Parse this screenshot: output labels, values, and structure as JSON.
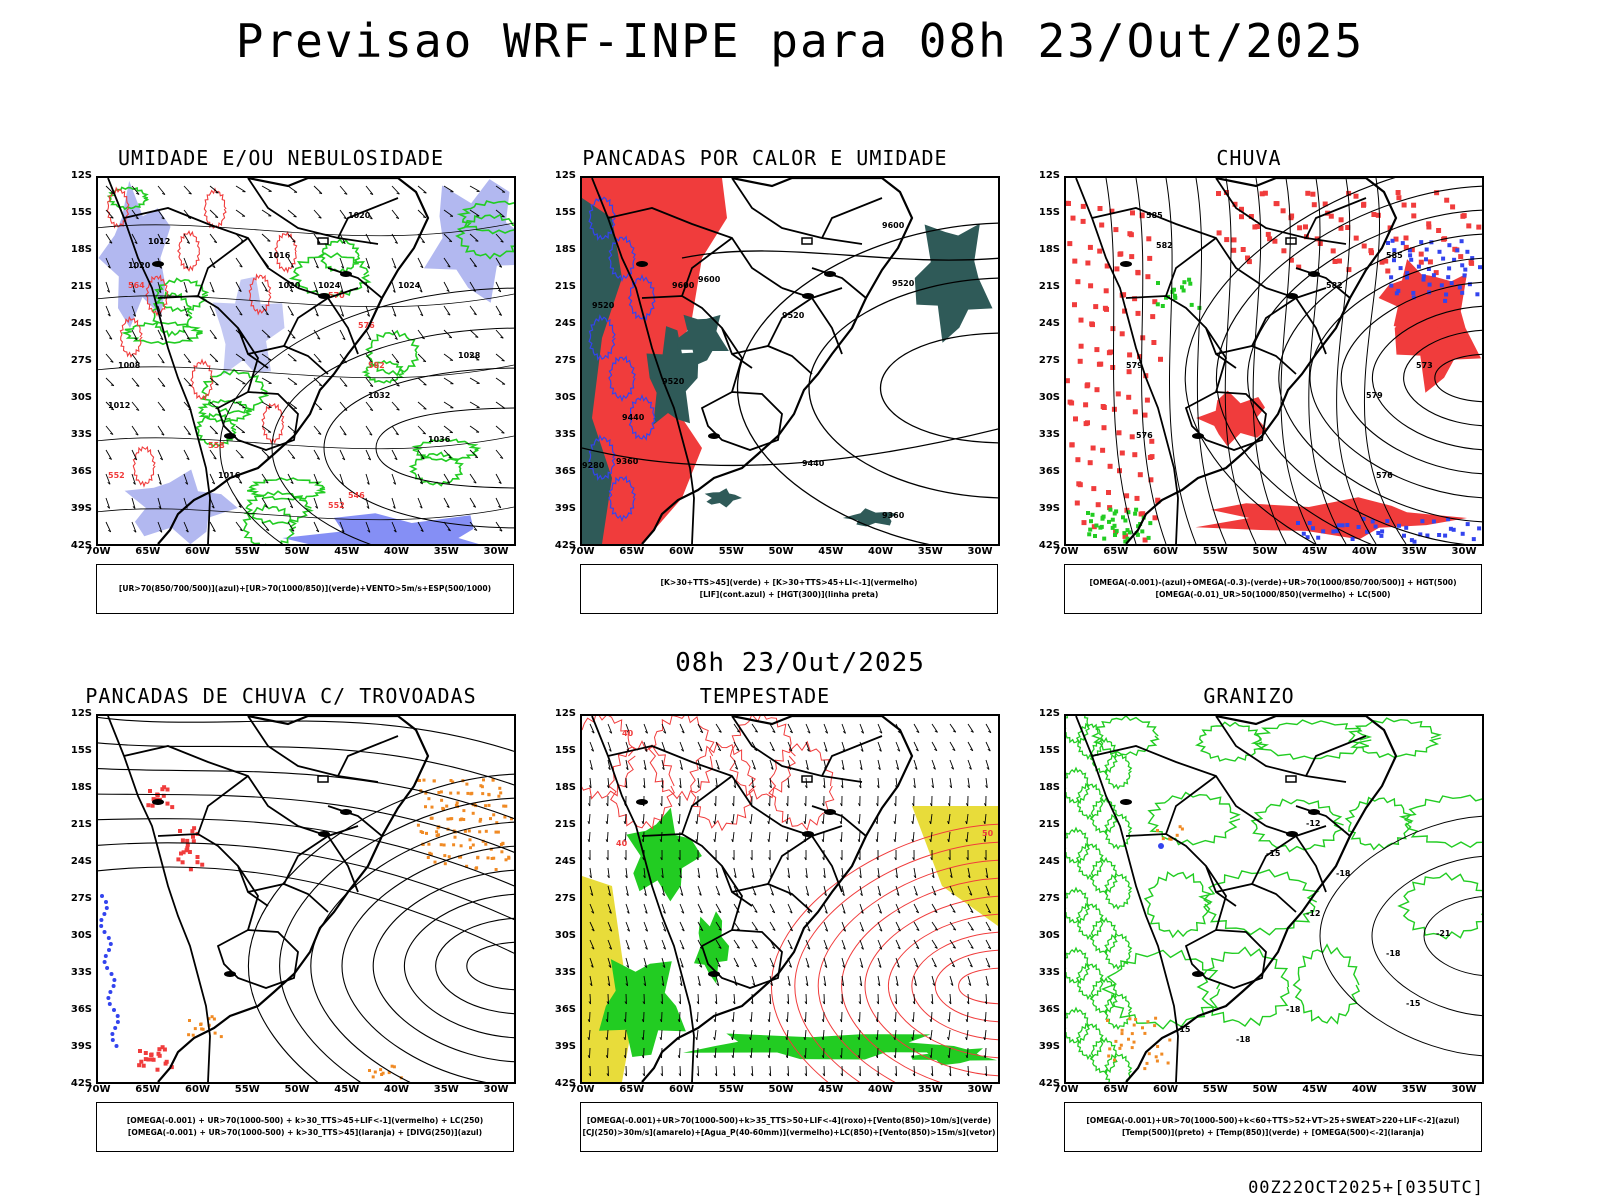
{
  "header": {
    "title": "Previsao WRF-INPE  para 08h 23/Out/2025"
  },
  "mid_title": "08h 23/Out/2025",
  "footer": "00Z22OCT2025+[035UTC]",
  "axes": {
    "lat_labels": [
      "12S",
      "15S",
      "18S",
      "21S",
      "24S",
      "27S",
      "30S",
      "33S",
      "36S",
      "39S",
      "42S"
    ],
    "lon_labels": [
      "70W",
      "65W",
      "60W",
      "55W",
      "50W",
      "45W",
      "40W",
      "35W",
      "30W"
    ]
  },
  "colors": {
    "red": "#f03c3c",
    "green": "#22cc22",
    "blue": "#3344ee",
    "lavender": "#aab0ee",
    "orange": "#f08a24",
    "yellow": "#e8dc3a",
    "darkteal": "#2f5a58",
    "black": "#000000"
  },
  "panels": [
    {
      "title": "UMIDADE E/OU NEBULOSIDADE",
      "legend": [
        "[UR>70(850/700/500)](azul)+[UR>70(1000/850)](verde)+VENTO>5m/s+ESP(500/1000)"
      ],
      "contour_labels": [
        "1012",
        "1020",
        "1016",
        "1024",
        "1028",
        "1032",
        "1036",
        "1020",
        "1016",
        "1012",
        "1008",
        "1024",
        "1020"
      ],
      "thickness_labels": [
        "564",
        "570",
        "576",
        "582",
        "558",
        "552",
        "546",
        "552"
      ]
    },
    {
      "title": "PANCADAS POR CALOR E UMIDADE",
      "legend": [
        "[K>30+TTS>45](verde) + [K>30+TTS>45+LI<-1](vermelho)",
        "[LIF](cont.azul) + [HGT(300)](linha preta)"
      ],
      "contour_labels": [
        "9600",
        "9600",
        "9520",
        "9520",
        "9520",
        "9440",
        "9440",
        "9360",
        "9280",
        "9360",
        "9520",
        "9600"
      ]
    },
    {
      "title": "CHUVA",
      "legend": [
        "[OMEGA(-0.001)-(azul)+OMEGA(-0.3)-(verde)+UR>70(1000/850/700/500)] + HGT(500)",
        "[OMEGA(-0.01)_UR>50(1000/850)(vermelho) + LC(500)"
      ],
      "contour_labels": [
        "585",
        "582",
        "579",
        "576",
        "573",
        "576",
        "579",
        "582",
        "585"
      ]
    },
    {
      "title": "PANCADAS DE CHUVA C/ TROVOADAS",
      "legend": [
        "[OMEGA(-0.001) + UR>70(1000-500) + k>30_TTS>45+LIF<-1](vermelho) + LC(250)",
        "[OMEGA(-0.001) + UR>70(1000-500) + k>30_TTS>45](laranja) + [DIVG(250)](azul)"
      ]
    },
    {
      "title": "TEMPESTADE",
      "legend": [
        "[OMEGA(-0.001)+UR>70(1000-500)+k>35_TTS>50+LIF<-4](roxo)+[Vento(850)>10m/s](verde)",
        "[CJ(250)>30m/s](amarelo)+[Agua_P(40-60mm)](vermelho)+LC(850)+[Vento(850)>15m/s](vetor)"
      ],
      "contour_labels": [
        "40",
        "50",
        "40"
      ]
    },
    {
      "title": "GRANIZO",
      "legend": [
        "[OMEGA(-0.001)+UR>70(1000-500)+k<60+TTS>52+VT>25+SWEAT>220+LIF<-2](azul)",
        "[Temp(500)](preto) + [Temp(850)](verde) + [OMEGA(500)<-2](laranja)"
      ],
      "contour_labels": [
        "-12",
        "-15",
        "-18",
        "-12",
        "-18",
        "-15",
        "-18",
        "-21",
        "-15",
        "-18"
      ]
    }
  ]
}
